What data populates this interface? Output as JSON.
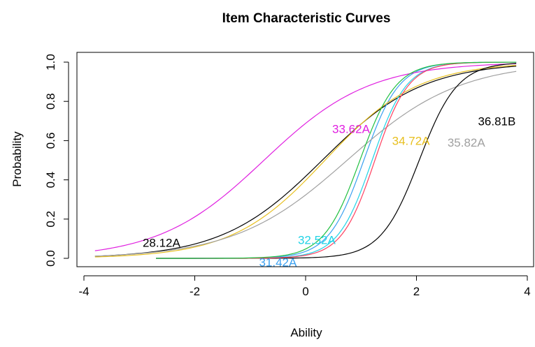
{
  "chart_data": {
    "type": "line",
    "title": "Item Characteristic Curves",
    "xlabel": "Ability",
    "ylabel": "Probability",
    "xlim": [
      -4,
      4
    ],
    "ylim": [
      0,
      1
    ],
    "xticks": [
      "-4",
      "-2",
      "0",
      "2",
      "4"
    ],
    "yticks": [
      "0.0",
      "0.2",
      "0.4",
      "0.6",
      "0.8",
      "1.0"
    ],
    "grid": false,
    "legend": "none",
    "series": [
      {
        "name": "28.12A",
        "color": "#000000",
        "x_range": [
          -3.8,
          3.8
        ],
        "a": 0.65,
        "b": 0.3,
        "label_x": -2.6,
        "label_y": 0.08
      },
      {
        "name": "31.42A",
        "color": "#3aa0f0",
        "x_range": [
          -2.7,
          3.8
        ],
        "a": 1.85,
        "b": 1.05,
        "label_x": -0.5,
        "label_y": -0.02
      },
      {
        "name": "32.52A",
        "color": "#22d3e6",
        "x_range": [
          -2.7,
          3.8
        ],
        "a": 1.9,
        "b": 1.2,
        "label_x": 0.2,
        "label_y": 0.095
      },
      {
        "name": "33.62A",
        "color": "#e020e0",
        "x_range": [
          -3.8,
          3.8
        ],
        "a": 0.62,
        "b": -0.75,
        "label_x": 0.82,
        "label_y": 0.66
      },
      {
        "name": "34.72A",
        "color": "#e8c020",
        "x_range": [
          -3.8,
          3.8
        ],
        "a": 0.7,
        "b": 0.35,
        "label_x": 1.9,
        "label_y": 0.6
      },
      {
        "name": "35.82A",
        "color": "#a0a0a0",
        "x_range": [
          -3.8,
          3.8
        ],
        "a": 0.58,
        "b": 0.75,
        "label_x": 2.9,
        "label_y": 0.59
      },
      {
        "name": "36.81B",
        "color": "#000000",
        "x_range": [
          -2.7,
          3.8
        ],
        "a": 1.7,
        "b": 2.05,
        "label_x": 3.45,
        "label_y": 0.7
      },
      {
        "name": "",
        "color": "#ff4060",
        "x_range": [
          -2.7,
          3.8
        ],
        "a": 1.95,
        "b": 1.25
      },
      {
        "name": "",
        "color": "#20c040",
        "x_range": [
          -2.7,
          3.8
        ],
        "a": 1.8,
        "b": 0.98
      }
    ]
  }
}
